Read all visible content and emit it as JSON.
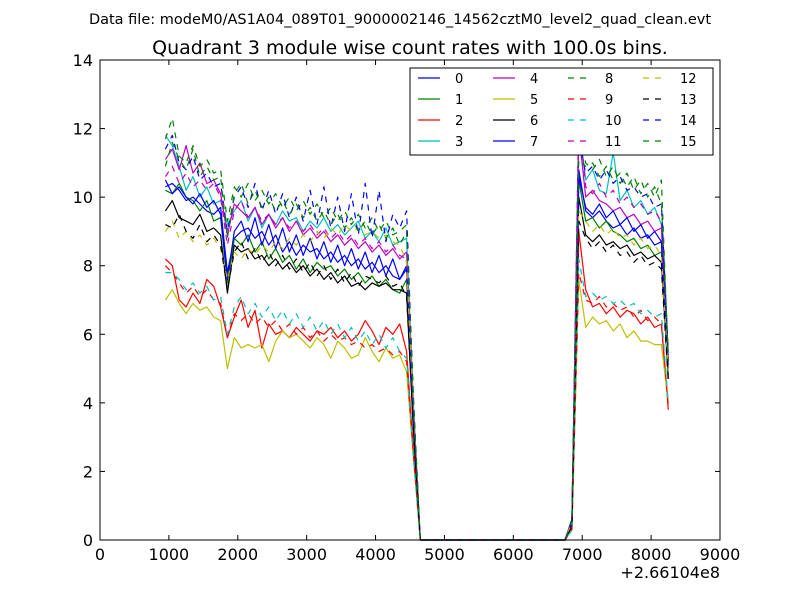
{
  "chart_data": {
    "type": "line",
    "suptitle": "Data file: modeM0/AS1A04_089T01_9000002146_14562cztM0_level2_quad_clean.evt",
    "title": "Quadrant 3 module wise count rates with 100.0s bins.",
    "xlabel": "",
    "ylabel": "",
    "x_offset_label": "+2.66104e8",
    "xlim": [
      0,
      9000
    ],
    "ylim": [
      0,
      14
    ],
    "xticks": [
      0,
      1000,
      2000,
      3000,
      4000,
      5000,
      6000,
      7000,
      8000,
      9000
    ],
    "yticks": [
      0,
      2,
      4,
      6,
      8,
      10,
      12,
      14
    ],
    "legend_position": "top-right",
    "x": [
      950,
      1050,
      1150,
      1250,
      1350,
      1450,
      1550,
      1650,
      1750,
      1850,
      1950,
      2050,
      2150,
      2250,
      2350,
      2450,
      2550,
      2650,
      2750,
      2850,
      2950,
      3050,
      3150,
      3250,
      3350,
      3450,
      3550,
      3650,
      3750,
      3850,
      3950,
      4050,
      4150,
      4250,
      4350,
      4450,
      4550,
      4650,
      6750,
      6850,
      6950,
      7050,
      7150,
      7250,
      7350,
      7450,
      7550,
      7650,
      7750,
      7850,
      7950,
      8050,
      8150,
      8250
    ],
    "series": [
      {
        "name": "0",
        "color": "#0000ff",
        "dash": false,
        "values": [
          10.3,
          10.4,
          10.2,
          9.9,
          10.0,
          9.8,
          9.6,
          9.5,
          9.7,
          7.8,
          8.8,
          9.0,
          9.1,
          8.8,
          9.0,
          8.6,
          8.9,
          8.4,
          8.7,
          8.3,
          8.6,
          8.4,
          8.5,
          8.2,
          8.4,
          8.1,
          8.3,
          8.0,
          8.2,
          7.9,
          8.1,
          7.8,
          8.0,
          7.7,
          7.6,
          8.0,
          3.5,
          0.0,
          0.0,
          0.5,
          10.8,
          9.6,
          9.4,
          9.6,
          9.3,
          9.1,
          9.2,
          8.9,
          9.1,
          8.8,
          8.9,
          8.6,
          8.7,
          5.0
        ]
      },
      {
        "name": "1",
        "color": "#008000",
        "dash": false,
        "values": [
          10.2,
          10.1,
          10.4,
          10.0,
          9.9,
          9.6,
          9.9,
          9.3,
          9.4,
          7.5,
          8.8,
          8.6,
          8.9,
          8.4,
          8.7,
          8.2,
          8.5,
          8.1,
          8.3,
          7.9,
          8.2,
          7.8,
          8.1,
          7.9,
          8.0,
          7.7,
          7.9,
          7.6,
          7.8,
          7.5,
          7.7,
          7.4,
          7.6,
          7.3,
          7.2,
          7.6,
          3.3,
          0.0,
          0.0,
          0.5,
          10.5,
          9.3,
          9.4,
          9.1,
          9.3,
          9.0,
          8.9,
          8.7,
          8.8,
          8.5,
          8.6,
          8.3,
          8.4,
          4.8
        ]
      },
      {
        "name": "2",
        "color": "#ff0000",
        "dash": false,
        "values": [
          8.2,
          8.0,
          7.0,
          6.8,
          7.2,
          6.9,
          7.6,
          7.4,
          6.8,
          5.9,
          6.5,
          7.0,
          6.2,
          6.7,
          5.6,
          6.3,
          6.0,
          6.1,
          5.9,
          6.2,
          6.0,
          5.8,
          6.1,
          6.0,
          6.2,
          5.9,
          6.1,
          5.8,
          6.0,
          6.4,
          6.1,
          5.7,
          6.2,
          6.0,
          6.3,
          5.5,
          2.6,
          0.0,
          0.0,
          0.3,
          9.0,
          7.3,
          6.8,
          6.9,
          6.6,
          6.8,
          6.5,
          6.7,
          6.6,
          6.3,
          6.5,
          6.2,
          6.3,
          3.8
        ]
      },
      {
        "name": "3",
        "color": "#00bfbf",
        "dash": false,
        "values": [
          11.8,
          11.5,
          10.9,
          10.2,
          10.6,
          10.0,
          10.3,
          9.8,
          9.9,
          9.2,
          9.6,
          9.9,
          9.3,
          9.7,
          9.1,
          9.5,
          9.2,
          9.6,
          9.3,
          9.4,
          9.0,
          9.3,
          9.1,
          9.4,
          9.0,
          9.2,
          8.9,
          9.1,
          9.3,
          8.8,
          9.0,
          8.7,
          9.1,
          8.6,
          8.7,
          8.8,
          4.0,
          0.0,
          0.0,
          0.6,
          12.2,
          10.5,
          10.8,
          10.2,
          10.1,
          11.3,
          9.9,
          10.2,
          9.7,
          9.9,
          9.5,
          9.7,
          9.2,
          5.4
        ]
      },
      {
        "name": "4",
        "color": "#bf00bf",
        "dash": false,
        "values": [
          11.1,
          11.4,
          10.8,
          11.5,
          10.7,
          11.0,
          10.4,
          10.5,
          10.1,
          8.9,
          9.8,
          9.6,
          9.4,
          9.7,
          9.2,
          9.5,
          9.1,
          9.4,
          9.0,
          9.3,
          8.9,
          9.1,
          8.8,
          9.0,
          8.7,
          8.9,
          8.6,
          8.8,
          8.5,
          8.7,
          8.4,
          8.6,
          8.3,
          8.5,
          8.2,
          8.4,
          3.8,
          0.0,
          0.0,
          0.6,
          11.9,
          10.0,
          10.2,
          9.9,
          9.8,
          9.6,
          9.7,
          9.4,
          9.5,
          9.2,
          9.3,
          9.0,
          9.1,
          5.2
        ]
      },
      {
        "name": "5",
        "color": "#bfbf00",
        "dash": false,
        "values": [
          7.0,
          7.3,
          6.9,
          6.6,
          6.9,
          6.7,
          6.8,
          6.5,
          6.4,
          5.0,
          5.9,
          5.6,
          5.7,
          5.6,
          5.7,
          5.2,
          5.8,
          6.1,
          5.9,
          6.0,
          5.8,
          5.6,
          5.9,
          5.7,
          5.3,
          5.8,
          5.6,
          5.3,
          5.4,
          5.9,
          5.5,
          5.2,
          5.6,
          5.3,
          5.4,
          4.9,
          2.4,
          0.0,
          0.0,
          0.3,
          7.6,
          6.2,
          6.5,
          6.3,
          6.4,
          6.1,
          6.3,
          5.9,
          6.1,
          5.8,
          5.8,
          5.7,
          5.7,
          4.0
        ]
      },
      {
        "name": "6",
        "color": "#000000",
        "dash": false,
        "values": [
          9.6,
          9.9,
          9.4,
          9.3,
          9.2,
          9.5,
          9.0,
          9.1,
          8.9,
          7.2,
          8.6,
          8.4,
          8.5,
          8.2,
          8.3,
          8.0,
          8.2,
          7.9,
          8.1,
          7.8,
          8.0,
          7.7,
          7.9,
          7.6,
          7.8,
          7.5,
          7.7,
          7.4,
          7.5,
          7.3,
          7.5,
          7.4,
          7.5,
          7.3,
          7.3,
          7.2,
          3.2,
          0.0,
          0.0,
          0.4,
          10.0,
          8.9,
          8.7,
          8.9,
          8.6,
          8.7,
          8.5,
          8.6,
          8.3,
          8.4,
          8.2,
          8.3,
          8.1,
          4.7
        ]
      },
      {
        "name": "7",
        "color": "#0000ff",
        "dash": false,
        "values": [
          10.5,
          10.1,
          10.3,
          10.0,
          9.8,
          10.1,
          9.7,
          9.9,
          9.5,
          7.6,
          9.0,
          9.3,
          8.7,
          9.4,
          8.6,
          9.2,
          8.5,
          9.1,
          8.4,
          8.9,
          8.3,
          8.8,
          8.2,
          8.7,
          8.1,
          8.6,
          8.0,
          8.5,
          7.9,
          8.4,
          7.8,
          8.3,
          7.7,
          8.2,
          7.6,
          7.9,
          3.6,
          0.0,
          0.0,
          0.5,
          10.6,
          9.7,
          9.5,
          9.8,
          9.4,
          9.6,
          9.2,
          9.4,
          9.0,
          9.2,
          8.8,
          9.0,
          8.7,
          5.0
        ]
      },
      {
        "name": "8",
        "color": "#008000",
        "dash": true,
        "values": [
          11.7,
          12.3,
          11.2,
          11.0,
          11.5,
          10.9,
          11.1,
          10.7,
          10.8,
          9.3,
          10.3,
          10.0,
          10.4,
          9.9,
          10.2,
          9.8,
          10.1,
          9.7,
          10.0,
          9.6,
          9.9,
          9.5,
          9.8,
          9.4,
          9.7,
          9.3,
          9.6,
          9.2,
          9.5,
          9.1,
          9.4,
          9.0,
          9.3,
          8.9,
          9.0,
          9.2,
          4.2,
          0.0,
          0.0,
          0.6,
          12.0,
          11.0,
          10.8,
          11.1,
          10.6,
          10.9,
          10.4,
          10.7,
          10.2,
          10.5,
          10.0,
          10.3,
          9.8,
          5.5
        ]
      },
      {
        "name": "9",
        "color": "#ff0000",
        "dash": true,
        "values": [
          8.0,
          7.8,
          7.5,
          7.2,
          7.4,
          7.1,
          7.3,
          7.0,
          6.9,
          5.9,
          6.6,
          6.4,
          6.6,
          6.3,
          6.5,
          6.2,
          6.4,
          6.1,
          6.3,
          6.0,
          6.2,
          5.9,
          6.1,
          5.8,
          6.0,
          5.8,
          5.9,
          5.7,
          5.8,
          5.6,
          5.7,
          5.5,
          5.6,
          5.4,
          5.5,
          5.2,
          2.5,
          0.0,
          0.0,
          0.3,
          7.8,
          7.0,
          6.9,
          7.1,
          6.8,
          6.9,
          6.7,
          6.8,
          6.5,
          6.7,
          6.4,
          6.5,
          6.3,
          3.9
        ]
      },
      {
        "name": "10",
        "color": "#00bfbf",
        "dash": true,
        "values": [
          7.8,
          7.8,
          7.6,
          7.3,
          7.5,
          7.2,
          7.4,
          7.0,
          7.1,
          6.0,
          6.8,
          7.1,
          6.6,
          6.9,
          6.5,
          6.8,
          6.4,
          6.7,
          6.3,
          6.6,
          6.2,
          6.5,
          6.1,
          6.4,
          6.0,
          6.3,
          5.9,
          6.2,
          5.8,
          6.1,
          5.7,
          6.0,
          5.6,
          5.9,
          5.5,
          5.3,
          2.4,
          0.0,
          0.0,
          0.3,
          8.2,
          7.1,
          7.2,
          7.0,
          7.1,
          6.9,
          7.0,
          6.8,
          6.9,
          6.6,
          6.7,
          6.5,
          6.6,
          4.0
        ]
      },
      {
        "name": "11",
        "color": "#bf00bf",
        "dash": true,
        "values": [
          10.6,
          10.9,
          10.4,
          10.7,
          10.3,
          10.5,
          10.2,
          10.4,
          10.0,
          8.6,
          9.6,
          9.9,
          9.4,
          9.7,
          9.3,
          9.5,
          9.2,
          9.4,
          9.1,
          9.3,
          9.0,
          9.2,
          8.9,
          9.1,
          8.8,
          9.0,
          8.7,
          8.9,
          8.6,
          8.8,
          8.5,
          8.7,
          8.4,
          8.6,
          8.3,
          8.2,
          3.7,
          0.0,
          0.0,
          0.6,
          12.5,
          10.3,
          10.1,
          10.4,
          10.0,
          10.2,
          9.8,
          10.0,
          9.7,
          9.8,
          9.5,
          9.6,
          9.3,
          5.3
        ]
      },
      {
        "name": "12",
        "color": "#bfbf00",
        "dash": true,
        "values": [
          9.0,
          9.3,
          8.8,
          9.0,
          8.7,
          8.9,
          8.6,
          8.8,
          8.5,
          7.6,
          8.4,
          8.2,
          8.5,
          8.3,
          8.6,
          8.4,
          8.7,
          8.5,
          8.8,
          8.6,
          8.9,
          8.7,
          9.0,
          8.8,
          9.1,
          8.9,
          9.2,
          9.0,
          9.1,
          8.9,
          9.0,
          8.8,
          8.9,
          8.7,
          8.6,
          8.1,
          3.5,
          0.0,
          0.0,
          0.5,
          9.6,
          9.3,
          9.0,
          9.2,
          8.9,
          9.1,
          8.8,
          8.9,
          8.6,
          8.8,
          8.5,
          8.6,
          8.3,
          4.9
        ]
      },
      {
        "name": "13",
        "color": "#000000",
        "dash": true,
        "values": [
          9.2,
          9.1,
          9.5,
          9.0,
          8.8,
          9.2,
          8.7,
          8.9,
          8.6,
          7.3,
          8.4,
          8.7,
          8.2,
          8.5,
          8.1,
          8.4,
          8.0,
          8.3,
          7.9,
          8.2,
          7.8,
          8.1,
          7.7,
          8.0,
          7.6,
          7.9,
          7.5,
          7.8,
          7.4,
          7.7,
          7.6,
          7.5,
          7.7,
          7.4,
          7.5,
          7.1,
          3.3,
          0.0,
          0.0,
          0.4,
          9.3,
          8.8,
          8.5,
          8.7,
          8.4,
          8.6,
          8.3,
          8.4,
          8.1,
          8.3,
          8.0,
          8.1,
          7.9,
          4.6
        ]
      },
      {
        "name": "14",
        "color": "#0000ff",
        "dash": true,
        "values": [
          11.4,
          11.8,
          11.0,
          10.8,
          11.2,
          10.5,
          10.7,
          10.3,
          10.4,
          9.0,
          10.0,
          10.3,
          9.7,
          10.4,
          9.6,
          10.2,
          9.5,
          10.1,
          9.4,
          10.0,
          9.3,
          10.2,
          9.2,
          10.3,
          9.1,
          10.0,
          9.0,
          10.1,
          8.9,
          10.4,
          8.8,
          10.2,
          8.7,
          9.5,
          9.1,
          9.6,
          4.0,
          0.0,
          0.0,
          0.6,
          11.6,
          10.7,
          10.9,
          10.5,
          10.8,
          10.4,
          10.6,
          10.2,
          10.3,
          10.0,
          10.1,
          9.7,
          9.8,
          5.4
        ]
      },
      {
        "name": "15",
        "color": "#008000",
        "dash": true,
        "values": [
          10.9,
          11.6,
          11.1,
          10.8,
          11.4,
          10.6,
          10.9,
          10.5,
          10.6,
          8.8,
          10.1,
          10.4,
          9.8,
          10.2,
          9.7,
          10.0,
          9.6,
          9.9,
          9.5,
          9.8,
          9.4,
          9.7,
          9.3,
          9.6,
          9.2,
          9.5,
          9.1,
          9.4,
          9.0,
          9.3,
          8.9,
          9.2,
          8.8,
          9.1,
          8.6,
          9.0,
          4.1,
          0.0,
          0.0,
          0.6,
          11.1,
          10.9,
          11.0,
          10.6,
          10.9,
          10.5,
          10.7,
          10.3,
          10.6,
          10.1,
          10.4,
          10.0,
          10.5,
          5.2
        ]
      }
    ]
  }
}
